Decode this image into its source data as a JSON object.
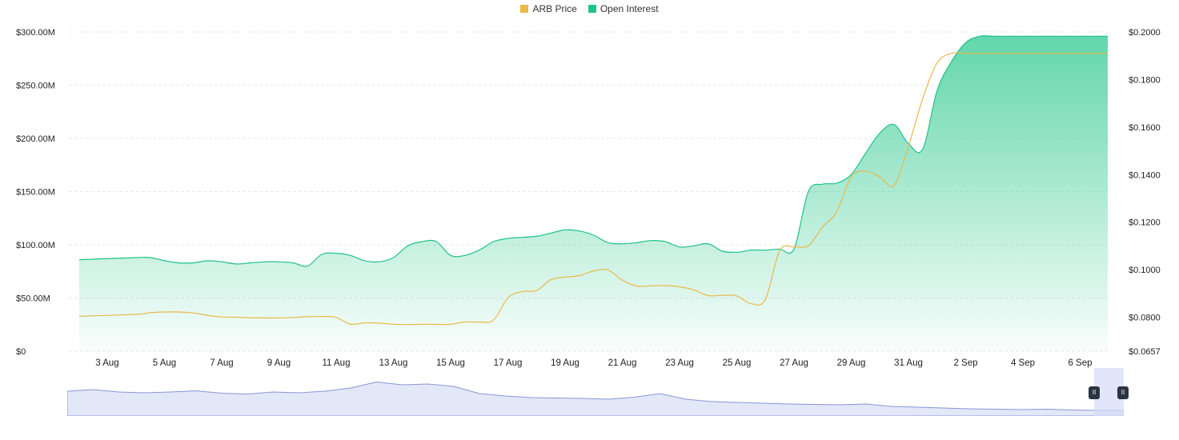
{
  "legend": {
    "items": [
      {
        "label": "ARB Price",
        "color": "#e9b949"
      },
      {
        "label": "Open Interest",
        "color": "#1fc28b"
      }
    ]
  },
  "chart_data": {
    "type": "area",
    "title": "",
    "left_axis": {
      "ticks": [
        "$0",
        "$50.00M",
        "$100.00M",
        "$150.00M",
        "$200.00M",
        "$250.00M",
        "$300.00M"
      ],
      "range": [
        0,
        300000000
      ]
    },
    "right_axis": {
      "ticks": [
        "$0.0657",
        "$0.0800",
        "$0.1000",
        "$0.1200",
        "$0.1400",
        "$0.1600",
        "$0.1800",
        "$0.2000"
      ],
      "range": [
        0.0657,
        0.2
      ]
    },
    "x_ticks": [
      "3 Aug",
      "5 Aug",
      "7 Aug",
      "9 Aug",
      "11 Aug",
      "13 Aug",
      "15 Aug",
      "17 Aug",
      "19 Aug",
      "21 Aug",
      "23 Aug",
      "25 Aug",
      "27 Aug",
      "29 Aug",
      "31 Aug",
      "2 Sep",
      "4 Sep",
      "6 Sep"
    ],
    "x": [
      1.5,
      2.0,
      2.5,
      3.0,
      3.5,
      4.0,
      4.5,
      5.0,
      5.5,
      6.0,
      6.5,
      7.0,
      7.5,
      8.0,
      8.5,
      9.0,
      9.5,
      10.0,
      10.5,
      11.0,
      11.5,
      12.0,
      12.5,
      13.0,
      13.5,
      14.0,
      14.5,
      15.0,
      15.5,
      16.0,
      16.5,
      17.0,
      17.5,
      18.0,
      18.5,
      19.0,
      19.5,
      20.0,
      20.5,
      21.0,
      21.5,
      22.0,
      22.5,
      23.0,
      23.5,
      24.0,
      24.5,
      25.0,
      25.5,
      26.0,
      26.5,
      27.0,
      27.5,
      28.0,
      28.5,
      29.0,
      29.5,
      30.0,
      30.5,
      31.0,
      31.5,
      32.0,
      32.5,
      33.0,
      33.5,
      34.0,
      34.5,
      35.0,
      35.5,
      36.0,
      36.5,
      37.0,
      37.5,
      37.6
    ],
    "series": [
      {
        "name": "Open Interest",
        "axis": "left",
        "color": "#1fc28b",
        "values": [
          86000000,
          88000000,
          88000000,
          85000000,
          83000000,
          83000000,
          85000000,
          84000000,
          82000000,
          83000000,
          84000000,
          84000000,
          83000000,
          80000000,
          91000000,
          92000000,
          90000000,
          85000000,
          84000000,
          88000000,
          99000000,
          103000000,
          103000000,
          90000000,
          90000000,
          95000000,
          103000000,
          106000000,
          107000000,
          108000000,
          111000000,
          114000000,
          113000000,
          109000000,
          102000000,
          101000000,
          102000000,
          104000000,
          103000000,
          98000000,
          99000000,
          101000000,
          94000000,
          93000000,
          95000000,
          95000000,
          96000000,
          96000000,
          150000000,
          157000000,
          158000000,
          166000000,
          186000000,
          205000000,
          213000000,
          195000000,
          190000000,
          245000000,
          272000000,
          290000000,
          296000000,
          296000000,
          296000000,
          296000000,
          296000000,
          296000000,
          296000000,
          296000000,
          296000000,
          296000000,
          296000000,
          296000000,
          296000000,
          296000000
        ]
      },
      {
        "name": "ARB Price",
        "axis": "right",
        "color": "#e9b949",
        "values": [
          0.0804,
          0.0812,
          0.0819,
          0.0822,
          0.0822,
          0.0818,
          0.0808,
          0.0801,
          0.08,
          0.0798,
          0.0797,
          0.0797,
          0.0799,
          0.0802,
          0.0803,
          0.0799,
          0.0771,
          0.0776,
          0.0775,
          0.077,
          0.0769,
          0.077,
          0.077,
          0.077,
          0.078,
          0.078,
          0.0788,
          0.0881,
          0.0908,
          0.0912,
          0.0958,
          0.0969,
          0.0975,
          0.0995,
          0.0999,
          0.0956,
          0.0931,
          0.0932,
          0.0933,
          0.0928,
          0.0915,
          0.0891,
          0.0892,
          0.089,
          0.0857,
          0.0875,
          0.108,
          0.1096,
          0.11,
          0.118,
          0.1245,
          0.139,
          0.1415,
          0.139,
          0.1355,
          0.152,
          0.172,
          0.187,
          0.191,
          0.191,
          0.191,
          0.191,
          0.191,
          0.191,
          0.191,
          0.191,
          0.191,
          0.191,
          0.191,
          0.191,
          0.191,
          0.191,
          0.191,
          0.191
        ]
      }
    ],
    "grid": true,
    "legend_position": "top-center"
  },
  "colors": {
    "oi_line": "#1fc28b",
    "oi_fill_top": "#2ec98f",
    "price_line": "#e9b949",
    "navigator_fill": "#e3e8f8",
    "navigator_line": "#8796d6",
    "navigator_window": "#d4dcf8",
    "grid": "#e8e8e8"
  },
  "navigator": {
    "pause_symbol": "II"
  }
}
